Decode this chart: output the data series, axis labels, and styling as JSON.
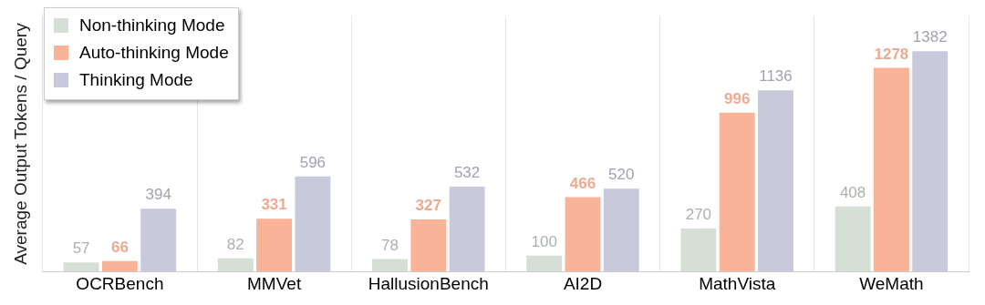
{
  "chart_data": {
    "type": "bar",
    "ylabel": "Average Output Tokens / Query",
    "categories": [
      "OCRBench",
      "MMVet",
      "HallusionBench",
      "AI2D",
      "MathVista",
      "WeMath"
    ],
    "series": [
      {
        "name": "Non-thinking Mode",
        "color": "#d5dfd5",
        "values": [
          57,
          82,
          78,
          100,
          270,
          408
        ]
      },
      {
        "name": "Auto-thinking Mode",
        "color": "#f9b398",
        "values": [
          66,
          331,
          327,
          466,
          996,
          1278
        ]
      },
      {
        "name": "Thinking Mode",
        "color": "#c9c9dc",
        "values": [
          394,
          596,
          532,
          520,
          1136,
          1382
        ]
      }
    ],
    "data_labels": true,
    "grid": "x",
    "legend": "top left"
  }
}
